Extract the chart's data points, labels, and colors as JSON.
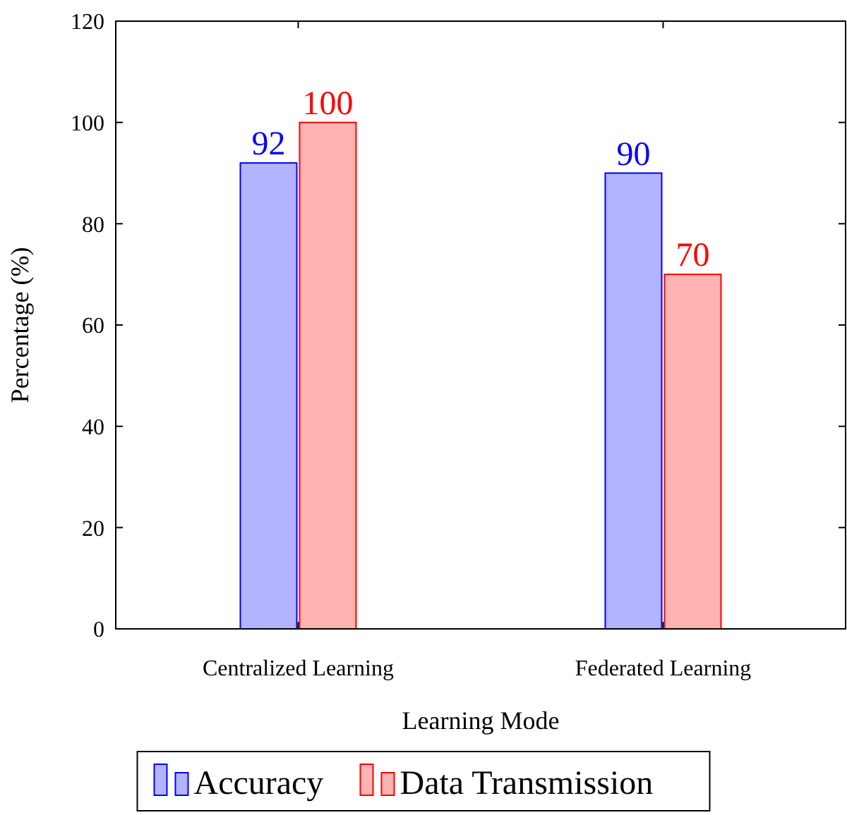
{
  "chart_data": {
    "type": "bar",
    "xlabel": "Learning Mode",
    "ylabel": "Percentage (%)",
    "categories": [
      "Centralized Learning",
      "Federated Learning"
    ],
    "series": [
      {
        "name": "Accuracy",
        "color": "#b3b3ff",
        "values": [
          92,
          90
        ]
      },
      {
        "name": "Data Transmission",
        "color": "#ffb3b3",
        "values": [
          100,
          70
        ]
      }
    ],
    "ylim": [
      0,
      120
    ],
    "yticks": [
      0,
      20,
      40,
      60,
      80,
      100,
      120
    ],
    "data_labels": true,
    "legend": "bottom",
    "grid": false
  }
}
